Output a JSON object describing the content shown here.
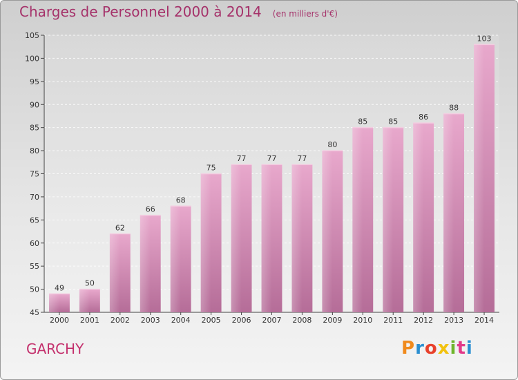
{
  "chart_data": {
    "type": "bar",
    "title": "Charges de Personnel 2000 à 2014",
    "subtitle": "(en milliers d'€)",
    "categories": [
      "2000",
      "2001",
      "2002",
      "2003",
      "2004",
      "2005",
      "2006",
      "2007",
      "2008",
      "2009",
      "2010",
      "2011",
      "2012",
      "2013",
      "2014"
    ],
    "values": [
      49,
      50,
      62,
      66,
      68,
      75,
      77,
      77,
      77,
      80,
      85,
      85,
      86,
      88,
      103
    ],
    "data_labels": [
      "49",
      "50",
      "62",
      "66",
      "68",
      "75",
      "77",
      "77",
      "77",
      "80",
      "85",
      "85",
      "86",
      "88",
      "103"
    ],
    "ylim": [
      45,
      105
    ],
    "yticks": [
      45,
      50,
      55,
      60,
      65,
      70,
      75,
      80,
      85,
      90,
      95,
      100,
      105
    ],
    "ytick_labels": [
      "45",
      "50",
      "55",
      "60",
      "65",
      "70",
      "75",
      "80",
      "85",
      "90",
      "95",
      "100",
      "105"
    ],
    "grid": true,
    "bar_color": "#d98cb4"
  },
  "footer": {
    "commune": "GARCHY",
    "logo_text": "Proxiti",
    "logo_colors": [
      "#f08a1d",
      "#2a8fd1",
      "#e8412c",
      "#f2c20f",
      "#6fb52c",
      "#e23a8a",
      "#2a8fd1"
    ]
  }
}
